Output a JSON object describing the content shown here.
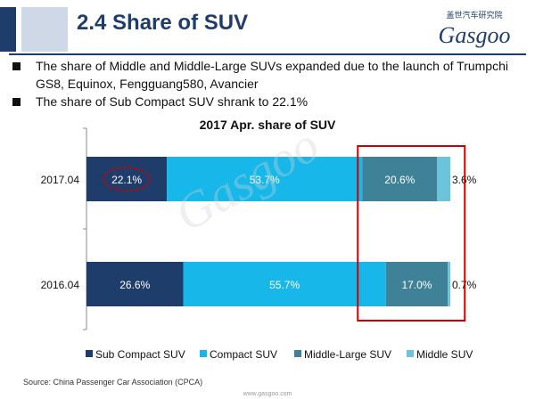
{
  "header": {
    "title": "2.4 Share of SUV",
    "logo_cn": "盖世汽车研究院",
    "logo_en": "Gasgoo"
  },
  "bullets": [
    "The share of Middle and Middle-Large SUVs expanded due to the launch of Trumpchi GS8, Equinox, Fengguang580, Avancier",
    "The share of Sub Compact SUV shrank to 22.1%"
  ],
  "chart_data": {
    "type": "bar",
    "orientation": "horizontal",
    "stacked": true,
    "percent": true,
    "title": "2017 Apr. share of SUV",
    "categories": [
      "2017.04",
      "2016.04"
    ],
    "series": [
      {
        "name": "Sub Compact SUV",
        "color": "#1f3d6b",
        "values": [
          22.1,
          26.6
        ],
        "labels": [
          "22.1%",
          "26.6%"
        ]
      },
      {
        "name": "Compact SUV",
        "color": "#17b7ea",
        "values": [
          53.7,
          55.7
        ],
        "labels": [
          "53.7%",
          "55.7%"
        ]
      },
      {
        "name": "Middle-Large SUV",
        "color": "#3f8196",
        "values": [
          20.6,
          17.0
        ],
        "labels": [
          "20.6%",
          "17.0%"
        ]
      },
      {
        "name": "Middle SUV",
        "color": "#6cc3dc",
        "values": [
          3.6,
          0.7
        ],
        "labels": [
          "3.6%",
          "0.7%"
        ]
      }
    ],
    "xlim": [
      0,
      100
    ],
    "legend": "bottom",
    "annotations": {
      "circle_highlight": "22.1%",
      "box_highlight": [
        "Middle-Large SUV",
        "Middle SUV"
      ],
      "highlight_color": "#cc0000"
    }
  },
  "source": "Source: China Passenger Car Association (CPCA)",
  "footer": "www.gasgoo.com",
  "watermark": "Gasgoo"
}
